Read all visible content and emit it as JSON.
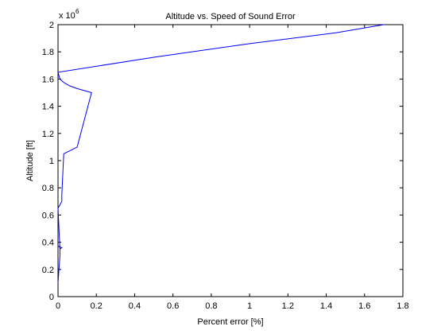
{
  "chart_data": {
    "type": "line",
    "title": "Altitude vs. Speed of Sound Error",
    "xlabel": "Percent error [%]",
    "ylabel": "Altitude [ft]",
    "xlim": [
      0,
      1.8
    ],
    "ylim": [
      0,
      2
    ],
    "y_multiplier": {
      "base": "x 10",
      "exponent": "6"
    },
    "xticks": [
      "0",
      "0.2",
      "0.4",
      "0.6",
      "0.8",
      "1",
      "1.2",
      "1.4",
      "1.6",
      "1.8"
    ],
    "yticks": [
      "0",
      "0.2",
      "0.4",
      "0.6",
      "0.8",
      "1",
      "1.2",
      "1.4",
      "1.6",
      "1.8",
      "2"
    ],
    "grid": false,
    "series": [
      {
        "color": "#0000ff",
        "x": [
          0.0,
          0.01,
          0.01,
          0.0,
          0.02,
          0.01,
          0.0,
          0.0,
          0.02,
          0.02,
          0.03,
          0.1,
          0.175,
          0.1,
          0.06,
          0.03,
          0.01,
          0.0,
          0.5,
          1.0,
          1.45,
          1.7
        ],
        "y": [
          0.1,
          0.3,
          0.37,
          0.37,
          0.36,
          0.35,
          0.65,
          0.65,
          0.7,
          0.75,
          1.05,
          1.1,
          1.5,
          1.53,
          1.55,
          1.575,
          1.6,
          1.65,
          1.76,
          1.86,
          1.94,
          2.0
        ]
      }
    ]
  }
}
